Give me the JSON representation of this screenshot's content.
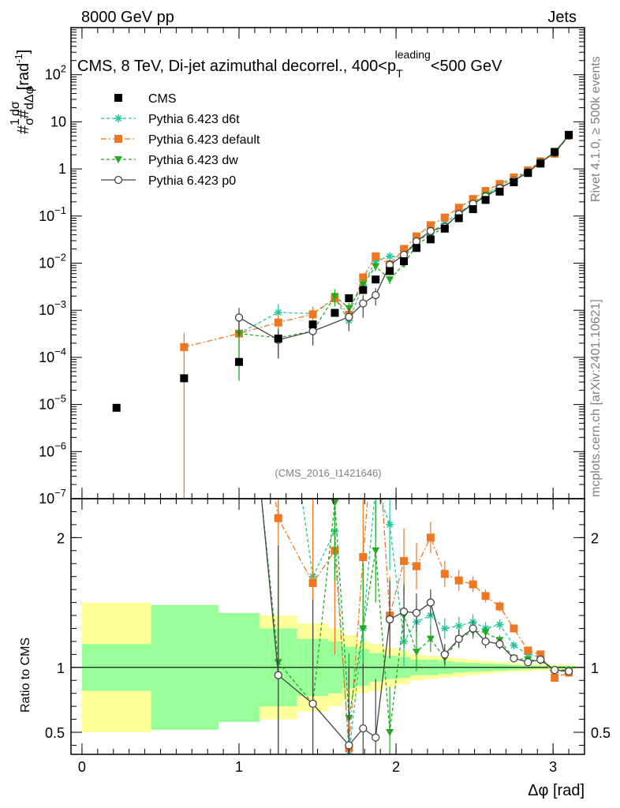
{
  "header": {
    "left": "8000 GeV pp",
    "right": "Jets"
  },
  "side_text": {
    "rivet": "Rivet 4.1.0, ≥ 500k events",
    "mcplots": "mcplots.cern.ch [arXiv:2401.10621]"
  },
  "watermark": "(CMS_2016_I1421646)",
  "chart_data": {
    "type": "scatter",
    "title": "CMS, 8 TeV, Di-jet azimuthal decorrel., 400<p_T^leading<500 GeV",
    "title_parts": {
      "main": "CMS, 8 TeV, Di-jet azimuthal decorrel., 400<p",
      "sub": "T",
      "sup": "leading",
      "tail": "<500 GeV"
    },
    "ylabel_top": "1/σ dσ/dΔφ [rad⁻¹]",
    "ylabel_parts": {
      "frac1_num": "1",
      "frac1_den": "σ",
      "frac2_num": "dσ",
      "frac2_den": "dΔφ",
      "hashes": "#",
      "unit": "[rad",
      "unit_sup": "-1",
      "unit_close": "]"
    },
    "ylabel_bottom": "Ratio to CMS",
    "xlabel": "Δφ [rad]",
    "xlim": [
      -0.07,
      3.2
    ],
    "ylim_top": [
      1e-07,
      1000
    ],
    "ylim_bottom": [
      0.33,
      2.3
    ],
    "xticks": [
      0,
      1,
      2,
      3
    ],
    "xtick_labels": [
      "0",
      "1",
      "2",
      "3"
    ],
    "yticks_top": [
      {
        "exp": 2,
        "base": "10",
        "sup": "2"
      },
      {
        "exp": 1,
        "base": "10",
        "sup": ""
      },
      {
        "exp": 0,
        "base": "1",
        "sup": ""
      },
      {
        "exp": -1,
        "base": "10",
        "sup": "−1"
      },
      {
        "exp": -2,
        "base": "10",
        "sup": "−2"
      },
      {
        "exp": -3,
        "base": "10",
        "sup": "−3"
      },
      {
        "exp": -4,
        "base": "10",
        "sup": "−4"
      },
      {
        "exp": -5,
        "base": "10",
        "sup": "−5"
      },
      {
        "exp": -6,
        "base": "10",
        "sup": "−6"
      },
      {
        "exp": -7,
        "base": "10",
        "sup": "−7"
      }
    ],
    "yticks_bottom": [
      0.5,
      1,
      2
    ],
    "ytick_labels_bottom": [
      "0.5",
      "1",
      "2"
    ],
    "bins": [
      {
        "lo": 0.0,
        "hi": 0.44
      },
      {
        "lo": 0.44,
        "hi": 0.87
      },
      {
        "lo": 0.87,
        "hi": 1.13
      },
      {
        "lo": 1.13,
        "hi": 1.37
      },
      {
        "lo": 1.37,
        "hi": 1.57
      },
      {
        "lo": 1.57,
        "hi": 1.66
      },
      {
        "lo": 1.66,
        "hi": 1.75
      },
      {
        "lo": 1.75,
        "hi": 1.83
      },
      {
        "lo": 1.83,
        "hi": 1.92
      },
      {
        "lo": 1.92,
        "hi": 2.01
      },
      {
        "lo": 2.01,
        "hi": 2.09
      },
      {
        "lo": 2.09,
        "hi": 2.18
      },
      {
        "lo": 2.18,
        "hi": 2.27
      },
      {
        "lo": 2.27,
        "hi": 2.36
      },
      {
        "lo": 2.36,
        "hi": 2.44
      },
      {
        "lo": 2.44,
        "hi": 2.53
      },
      {
        "lo": 2.53,
        "hi": 2.62
      },
      {
        "lo": 2.62,
        "hi": 2.71
      },
      {
        "lo": 2.71,
        "hi": 2.79
      },
      {
        "lo": 2.79,
        "hi": 2.88
      },
      {
        "lo": 2.88,
        "hi": 2.97
      },
      {
        "lo": 2.97,
        "hi": 3.06
      },
      {
        "lo": 3.06,
        "hi": 3.14
      }
    ],
    "band_stat": [
      0.18,
      0.48,
      0.42,
      0.3,
      0.22,
      0.2,
      0.16,
      0.14,
      0.11,
      0.09,
      0.08,
      0.06,
      0.06,
      0.05,
      0.04,
      0.035,
      0.03,
      0.025,
      0.02,
      0.015,
      0.012,
      0.01,
      0.01
    ],
    "band_total": [
      0.5,
      0.4,
      0.35,
      0.4,
      0.34,
      0.3,
      0.25,
      0.2,
      0.18,
      0.15,
      0.13,
      0.1,
      0.09,
      0.08,
      0.07,
      0.06,
      0.05,
      0.04,
      0.035,
      0.03,
      0.025,
      0.02,
      0.02
    ],
    "series": [
      {
        "name": "CMS",
        "style": "data",
        "color": "#000000",
        "marker": "square",
        "dash": "",
        "x": [
          0.22,
          0.65,
          1.0,
          1.25,
          1.47,
          1.61,
          1.7,
          1.79,
          1.87,
          1.96,
          2.05,
          2.13,
          2.22,
          2.31,
          2.4,
          2.49,
          2.57,
          2.66,
          2.75,
          2.84,
          2.92,
          3.01,
          3.1
        ],
        "y": [
          8.5e-06,
          3.6e-05,
          8e-05,
          0.00025,
          0.0005,
          0.00088,
          0.0018,
          0.0027,
          0.0045,
          0.0068,
          0.011,
          0.021,
          0.032,
          0.054,
          0.09,
          0.14,
          0.22,
          0.33,
          0.52,
          0.82,
          1.3,
          2.3,
          5.3
        ]
      },
      {
        "name": "Pythia 6.423 d6t",
        "style": "mc",
        "color": "#1ec89c",
        "marker": "star",
        "dash": "4,3",
        "x": [
          1.0,
          1.25,
          1.47,
          1.61,
          1.7,
          1.79,
          1.87,
          1.96,
          2.05,
          2.13,
          2.22,
          2.31,
          2.4,
          2.49,
          2.57,
          2.66,
          2.75,
          2.84,
          2.92,
          3.01,
          3.1
        ],
        "y": [
          0.00032,
          0.0009,
          0.00085,
          0.0018,
          0.0006,
          0.0035,
          0.011,
          0.014,
          0.013,
          0.028,
          0.045,
          0.07,
          0.118,
          0.19,
          0.29,
          0.44,
          0.61,
          0.9,
          1.4,
          2.3,
          5.2
        ],
        "err": [
          0.9,
          0.5,
          0.4,
          0.2,
          0.3,
          0.2,
          0.18,
          0.15,
          0.12,
          0.1,
          0.08,
          0.07,
          0.06,
          0.05,
          0.04,
          0.04,
          0.03,
          0.03,
          0.02,
          0.02,
          0.02
        ],
        "ratio": [
          4.0,
          3.6,
          1.7,
          2.05,
          0.33,
          1.3,
          2.4,
          2.1,
          1.2,
          1.35,
          1.4,
          1.3,
          1.32,
          1.35,
          1.3,
          1.33,
          1.17,
          1.1,
          1.08,
          0.96,
          0.98
        ],
        "ratio_err": [
          1.5,
          1.5,
          1.0,
          0.5,
          0.4,
          0.4,
          0.4,
          0.35,
          0.2,
          0.15,
          0.1,
          0.08,
          0.07,
          0.06,
          0.05,
          0.04,
          0.03,
          0.02,
          0.02,
          0.02,
          0.02
        ]
      },
      {
        "name": "Pythia 6.423 default",
        "style": "mc",
        "color": "#ee7722",
        "marker": "square",
        "dash": "7,3,2,3",
        "x": [
          0.65,
          1.0,
          1.25,
          1.47,
          1.61,
          1.7,
          1.79,
          1.87,
          1.96,
          2.05,
          2.13,
          2.22,
          2.31,
          2.4,
          2.49,
          2.57,
          2.66,
          2.75,
          2.84,
          2.92,
          3.01,
          3.1
        ],
        "y": [
          0.000165,
          0.00032,
          0.00055,
          0.00082,
          0.0018,
          0.0008,
          0.005,
          0.014,
          0.0095,
          0.02,
          0.037,
          0.064,
          0.093,
          0.15,
          0.23,
          0.34,
          0.48,
          0.66,
          0.93,
          1.45,
          2.1,
          5.1
        ],
        "err": [
          1.0,
          0.8,
          0.5,
          0.4,
          0.3,
          0.3,
          0.2,
          0.15,
          0.12,
          0.12,
          0.1,
          0.08,
          0.07,
          0.06,
          0.05,
          0.04,
          0.04,
          0.03,
          0.03,
          0.02,
          0.02,
          0.02
        ],
        "ratio": [
          4.6,
          4.0,
          2.15,
          1.65,
          1.9,
          0.38,
          1.85,
          3.1,
          1.4,
          1.82,
          1.78,
          2.0,
          1.72,
          1.67,
          1.64,
          1.55,
          1.47,
          1.3,
          1.13,
          1.1,
          0.92,
          0.96
        ],
        "ratio_err": [
          2.0,
          1.5,
          1.0,
          0.9,
          0.8,
          0.6,
          0.5,
          0.45,
          0.3,
          0.25,
          0.18,
          0.12,
          0.1,
          0.08,
          0.06,
          0.05,
          0.04,
          0.03,
          0.03,
          0.02,
          0.02,
          0.02
        ]
      },
      {
        "name": "Pythia 6.423 dw",
        "style": "mc",
        "color": "#22aa22",
        "marker": "triangle-down",
        "dash": "4,3",
        "x": [
          1.0,
          1.25,
          1.47,
          1.61,
          1.7,
          1.79,
          1.87,
          1.96,
          2.05,
          2.13,
          2.22,
          2.31,
          2.4,
          2.49,
          2.57,
          2.66,
          2.75,
          2.84,
          2.92,
          3.01,
          3.1
        ],
        "y": [
          0.00032,
          0.00026,
          0.00036,
          0.002,
          0.0011,
          0.0035,
          0.0085,
          0.0045,
          0.0095,
          0.024,
          0.039,
          0.058,
          0.11,
          0.18,
          0.28,
          0.4,
          0.56,
          0.87,
          1.37,
          2.28,
          5.2
        ],
        "err": [
          0.9,
          0.6,
          0.5,
          0.4,
          0.3,
          0.3,
          0.2,
          0.2,
          0.15,
          0.1,
          0.08,
          0.07,
          0.06,
          0.05,
          0.04,
          0.04,
          0.03,
          0.03,
          0.02,
          0.02,
          0.02
        ],
        "ratio": [
          4.0,
          1.04,
          0.72,
          2.27,
          0.61,
          1.3,
          1.9,
          0.5,
          1.4,
          1.12,
          1.22,
          1.07,
          1.22,
          1.28,
          1.27,
          1.21,
          1.07,
          1.06,
          1.05,
          0.98,
          0.98
        ],
        "ratio_err": [
          1.5,
          0.8,
          0.6,
          0.6,
          0.5,
          0.5,
          0.4,
          0.35,
          0.25,
          0.15,
          0.1,
          0.08,
          0.07,
          0.06,
          0.05,
          0.04,
          0.03,
          0.02,
          0.02,
          0.02,
          0.02
        ]
      },
      {
        "name": "Pythia 6.423 p0",
        "style": "mc",
        "color": "#444444",
        "marker": "circle-open",
        "dash": "",
        "x": [
          1.0,
          1.25,
          1.47,
          1.7,
          1.79,
          1.87,
          1.96,
          2.05,
          2.13,
          2.22,
          2.31,
          2.4,
          2.49,
          2.57,
          2.66,
          2.75,
          2.84,
          2.92,
          3.01,
          3.1
        ],
        "y": [
          0.0007,
          0.000235,
          0.00036,
          0.00072,
          0.0014,
          0.0021,
          0.0092,
          0.015,
          0.029,
          0.048,
          0.059,
          0.11,
          0.182,
          0.26,
          0.39,
          0.56,
          0.85,
          1.38,
          2.2,
          5.1
        ],
        "err": [
          0.6,
          0.6,
          0.5,
          0.5,
          0.5,
          0.4,
          0.25,
          0.15,
          0.1,
          0.08,
          0.07,
          0.06,
          0.05,
          0.04,
          0.04,
          0.03,
          0.03,
          0.02,
          0.02,
          0.02
        ],
        "ratio": [
          8.75,
          0.94,
          0.72,
          0.4,
          0.53,
          0.46,
          1.37,
          1.43,
          1.42,
          1.5,
          1.1,
          1.22,
          1.3,
          1.2,
          1.18,
          1.07,
          1.04,
          1.06,
          0.98,
          0.97
        ],
        "ratio_err": [
          3.0,
          1.0,
          0.8,
          0.6,
          0.5,
          0.45,
          0.3,
          0.2,
          0.15,
          0.1,
          0.08,
          0.07,
          0.06,
          0.05,
          0.04,
          0.03,
          0.02,
          0.02,
          0.02,
          0.02
        ]
      }
    ],
    "legend_position": "top-left"
  }
}
